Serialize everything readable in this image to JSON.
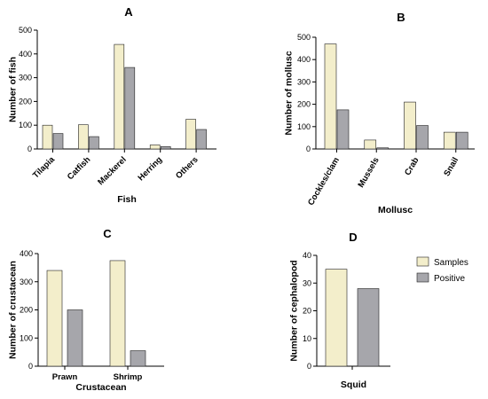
{
  "colors": {
    "samples": "#f3eecb",
    "positive": "#a6a6ab",
    "stroke": "#222222"
  },
  "legend": [
    {
      "key": "samples",
      "label": "Samples"
    },
    {
      "key": "positive",
      "label": "Positive"
    }
  ],
  "chart_data": [
    {
      "id": "A",
      "type": "bar",
      "panel_label": "A",
      "title": "A",
      "xlabel": "Fish",
      "ylabel": "Number of fish",
      "categories": [
        "Tilapia",
        "Catfish",
        "Mackerel",
        "Herring",
        "Others"
      ],
      "series": [
        {
          "name": "Samples",
          "values": [
            100,
            102,
            440,
            17,
            125
          ]
        },
        {
          "name": "Positive",
          "values": [
            65,
            52,
            343,
            10,
            82
          ]
        }
      ],
      "ylim": [
        0,
        500
      ],
      "yticks": [
        0,
        100,
        200,
        300,
        400,
        500
      ],
      "category_label_rotation": -45
    },
    {
      "id": "B",
      "type": "bar",
      "panel_label": "B",
      "title": "B",
      "xlabel": "Mollusc",
      "ylabel": "Number of mollusc",
      "categories": [
        "Cockles/clam",
        "Mussels",
        "Crab",
        "Snail"
      ],
      "series": [
        {
          "name": "Samples",
          "values": [
            470,
            40,
            210,
            75
          ]
        },
        {
          "name": "Positive",
          "values": [
            175,
            5,
            105,
            75
          ]
        }
      ],
      "ylim": [
        0,
        500
      ],
      "yticks": [
        0,
        100,
        200,
        300,
        400,
        500
      ],
      "category_label_rotation": -60
    },
    {
      "id": "C",
      "type": "bar",
      "panel_label": "C",
      "title": "C",
      "xlabel": "Crustacean",
      "ylabel": "Number of crustacean",
      "categories": [
        "Prawn",
        "Shrimp"
      ],
      "series": [
        {
          "name": "Samples",
          "values": [
            340,
            375
          ]
        },
        {
          "name": "Positive",
          "values": [
            200,
            55
          ]
        }
      ],
      "ylim": [
        0,
        400
      ],
      "yticks": [
        0,
        100,
        200,
        300,
        400
      ],
      "category_label_rotation": 0
    },
    {
      "id": "D",
      "type": "bar",
      "panel_label": "D",
      "title": "D",
      "xlabel": "Squid",
      "ylabel": "Number of cephalopod",
      "categories": [
        ""
      ],
      "series": [
        {
          "name": "Samples",
          "values": [
            35
          ]
        },
        {
          "name": "Positive",
          "values": [
            28
          ]
        }
      ],
      "ylim": [
        0,
        40
      ],
      "yticks": [
        0,
        10,
        20,
        30,
        40
      ],
      "category_label_rotation": 0
    }
  ]
}
